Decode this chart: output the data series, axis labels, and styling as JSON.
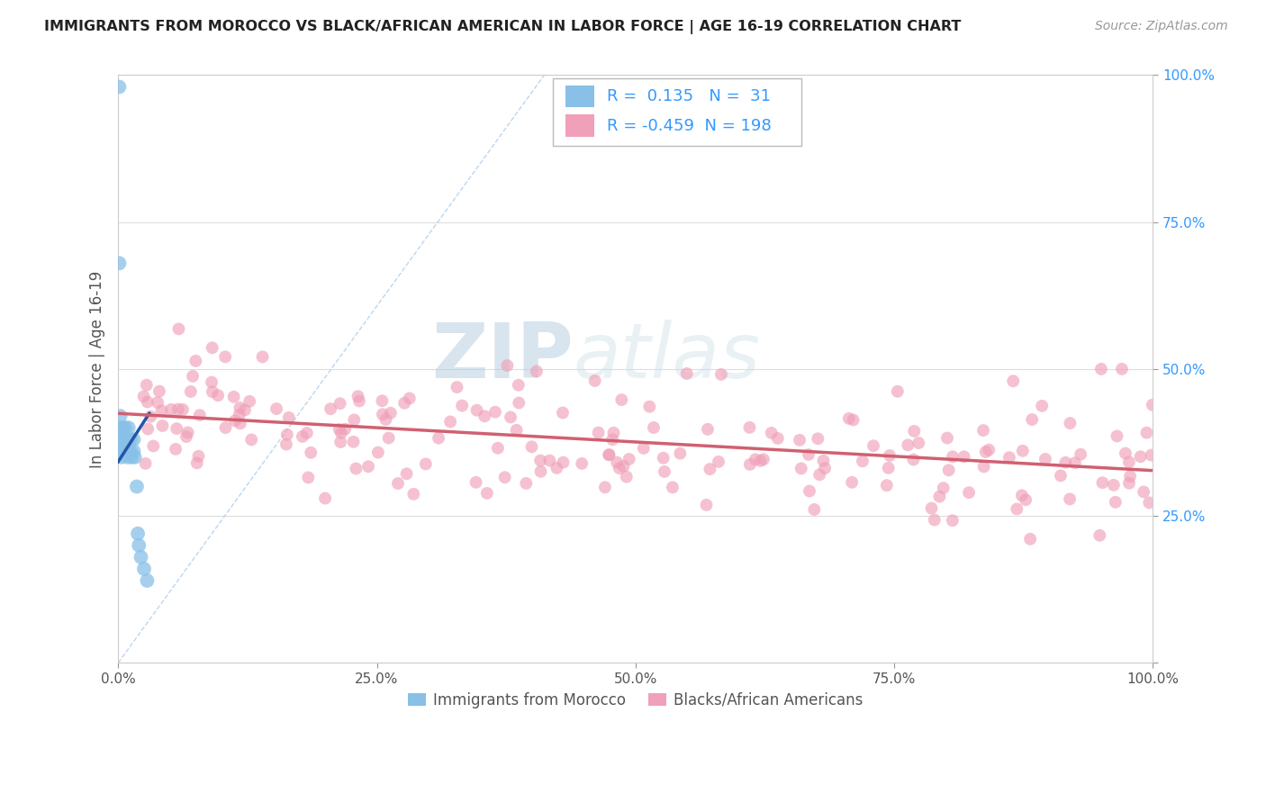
{
  "title": "IMMIGRANTS FROM MOROCCO VS BLACK/AFRICAN AMERICAN IN LABOR FORCE | AGE 16-19 CORRELATION CHART",
  "source": "Source: ZipAtlas.com",
  "ylabel": "In Labor Force | Age 16-19",
  "r_morocco": 0.135,
  "n_morocco": 31,
  "r_black": -0.459,
  "n_black": 198,
  "xlim": [
    0.0,
    1.0
  ],
  "ylim": [
    0.0,
    1.0
  ],
  "xticklabels": [
    "0.0%",
    "",
    "",
    "",
    "",
    "25.0%",
    "",
    "",
    "",
    "",
    "50.0%",
    "",
    "",
    "",
    "",
    "75.0%",
    "",
    "",
    "",
    "",
    "100.0%"
  ],
  "yticklabels_right": [
    "",
    "25.0%",
    "50.0%",
    "75.0%",
    "100.0%"
  ],
  "color_morocco": "#88c0e8",
  "color_black": "#f0a0b8",
  "color_trendline_morocco": "#2255aa",
  "color_trendline_black": "#d06070",
  "color_dashed": "#aaccee",
  "watermark_zip": "ZIP",
  "watermark_atlas": "atlas",
  "legend_label_morocco": "Immigrants from Morocco",
  "legend_label_black": "Blacks/African Americans",
  "background_color": "#ffffff",
  "grid_color": "#dddddd",
  "title_color": "#222222",
  "source_color": "#999999",
  "stat_color": "#3399ff",
  "label_color": "#555555"
}
